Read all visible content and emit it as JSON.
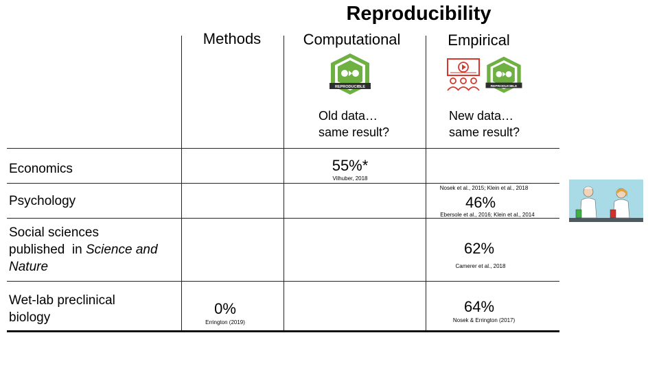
{
  "title": "Reproducibility",
  "columns": {
    "methods": "Methods",
    "computational": "Computational",
    "empirical": "Empirical"
  },
  "badge_text": "REPRODUCIBLE",
  "questions": {
    "computational": [
      "Old data…",
      "same result?"
    ],
    "empirical": [
      "New data…",
      "same result?"
    ]
  },
  "rows": {
    "economics": {
      "label": "Economics",
      "computational_value": "55%*",
      "computational_cite": "Vilhuber, 2018"
    },
    "psychology": {
      "label": "Psychology",
      "empirical_value": "46%",
      "cite_top": "Nosek et al., 2015;  Klein et al., 2018",
      "cite_bottom": "Ebersole et al., 2016;  Klein et al., 2014"
    },
    "social": {
      "label_1": "Social sciences",
      "label_2": "published  in ",
      "label_2_italic": "Science and",
      "label_3_italic": "Nature",
      "empirical_value": "62%",
      "empirical_cite": "Camerer et al., 2018"
    },
    "wetlab": {
      "label_1": "Wet-lab preclinical",
      "label_2": "biology",
      "methods_value": "0%",
      "methods_cite": "Errington (2019)",
      "empirical_value": "64%",
      "empirical_cite": "Nosek & Errington (2017)"
    }
  },
  "colors": {
    "badge_green": "#6fb043",
    "badge_dark": "#2e2e2e",
    "video_red": "#d9352a"
  }
}
